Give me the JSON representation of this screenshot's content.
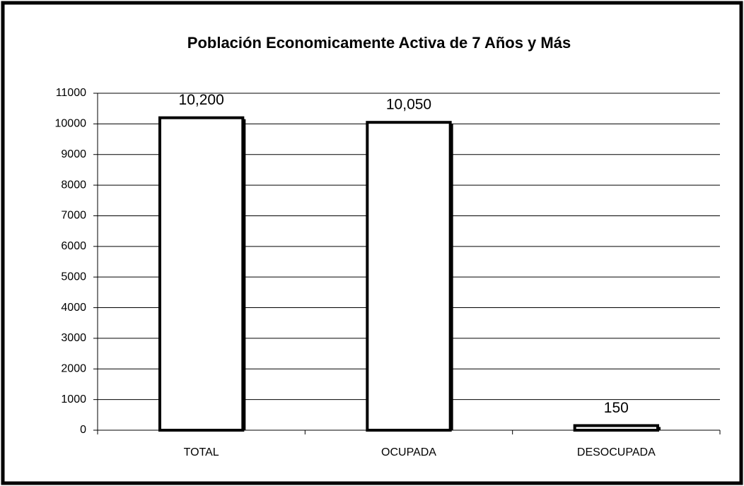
{
  "chart_data": {
    "type": "bar",
    "title": "Población Economicamente Activa de 7 Años y Más",
    "categories": [
      "TOTAL",
      "OCUPADA",
      "DESOCUPADA"
    ],
    "values": [
      10200,
      10050,
      150
    ],
    "value_labels": [
      "10,200",
      "10,050",
      "150"
    ],
    "color": "#ffffff",
    "ylim": [
      0,
      11000
    ],
    "yticks": [
      0,
      1000,
      2000,
      3000,
      4000,
      5000,
      6000,
      7000,
      8000,
      9000,
      10000,
      11000
    ],
    "grid": true
  }
}
